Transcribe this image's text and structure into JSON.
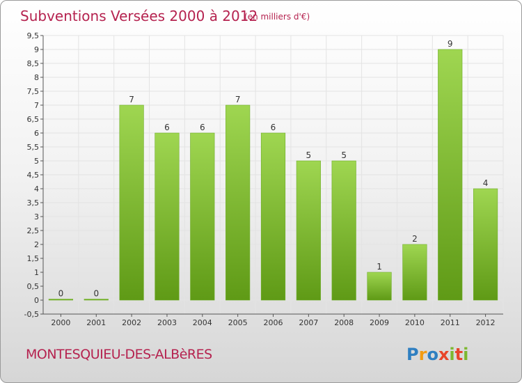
{
  "title": "Subventions Versées 2000 à 2012",
  "unit_note": "(en milliers d'€)",
  "commune": "MONTESQUIEU-DES-ALBèRES",
  "brand": {
    "letters": [
      "P",
      "r",
      "o",
      "x",
      "i",
      "t",
      "i"
    ],
    "colors": [
      "#2f7fc1",
      "#f39c12",
      "#2f7fc1",
      "#e8442a",
      "#7cb82f",
      "#e8442a",
      "#7cb82f"
    ]
  },
  "colors": {
    "accent": "#b5224f",
    "bar_light": "#9fd651",
    "bar_dark": "#5f9a16"
  },
  "chart_data": {
    "type": "bar",
    "title": "Subventions Versées 2000 à 2012",
    "subtitle": "(en milliers d'€)",
    "categories": [
      "2000",
      "2001",
      "2002",
      "2003",
      "2004",
      "2005",
      "2006",
      "2007",
      "2008",
      "2009",
      "2010",
      "2011",
      "2012"
    ],
    "values": [
      0,
      0,
      7,
      6,
      6,
      7,
      6,
      5,
      5,
      1,
      2,
      9,
      4
    ],
    "ylim": [
      -0.5,
      9.5
    ],
    "yticks": [
      "-0,5",
      "0",
      "0,5",
      "1",
      "1,5",
      "2",
      "2,5",
      "3",
      "3,5",
      "4",
      "4,5",
      "5",
      "5,5",
      "6",
      "6,5",
      "7",
      "7,5",
      "8",
      "8,5",
      "9",
      "9,5"
    ],
    "grid": true,
    "legend": "none"
  }
}
